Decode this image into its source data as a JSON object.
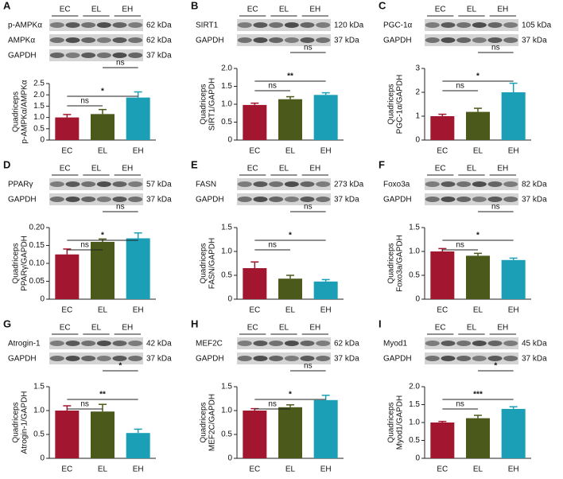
{
  "chart_data": [
    {
      "type": "bar",
      "panel": "A",
      "categories": [
        "EC",
        "EL",
        "EH"
      ],
      "values": [
        1.0,
        1.15,
        1.88
      ],
      "errors": [
        0.13,
        0.2,
        0.25
      ],
      "colors": [
        "#a3162f",
        "#4b5a1b",
        "#1b9fb6"
      ],
      "ylabel": [
        "Quadriceps",
        "p-AMPKα/AMPKα"
      ],
      "ylim": [
        0,
        2.5
      ],
      "yticks": [
        0,
        0.5,
        {
          "value": 1,
          "label": "1.0"
        },
        1.5,
        {
          "value": 2,
          "label": "2.0"
        },
        2.5
      ],
      "blot": {
        "lanes": [
          "EC",
          "EL",
          "EH"
        ],
        "rows": [
          {
            "name": "p-AMPKα",
            "kda": "62 kDa"
          },
          {
            "name": "AMPKα",
            "kda": "62 kDa"
          },
          {
            "name": "GAPDH",
            "kda": "37 kDa"
          }
        ]
      },
      "significance": [
        {
          "between": [
            0,
            1
          ],
          "label": "ns"
        },
        {
          "between": [
            0,
            2
          ],
          "label": "*"
        },
        {
          "between": [
            1,
            2
          ],
          "label": "ns"
        }
      ]
    },
    {
      "type": "bar",
      "panel": "B",
      "categories": [
        "EC",
        "EL",
        "EH"
      ],
      "values": [
        0.98,
        1.14,
        1.26
      ],
      "errors": [
        0.05,
        0.07,
        0.06
      ],
      "colors": [
        "#a3162f",
        "#4b5a1b",
        "#1b9fb6"
      ],
      "ylabel": [
        "Quadriceps",
        "SIRT1/GAPDH"
      ],
      "ylim": [
        0,
        2
      ],
      "yticks": [
        0,
        0.5,
        {
          "value": 1,
          "label": "1.0"
        },
        1.5,
        {
          "value": 2,
          "label": "2.0"
        }
      ],
      "blot": {
        "lanes": [
          "EC",
          "EL",
          "EH"
        ],
        "rows": [
          {
            "name": "SIRT1",
            "kda": "120 kDa"
          },
          {
            "name": "GAPDH",
            "kda": "37 kDa"
          }
        ]
      },
      "significance": [
        {
          "between": [
            0,
            1
          ],
          "label": "ns"
        },
        {
          "between": [
            0,
            2
          ],
          "label": "**"
        },
        {
          "between": [
            1,
            2
          ],
          "label": "ns"
        }
      ]
    },
    {
      "type": "bar",
      "panel": "C",
      "categories": [
        "EC",
        "EL",
        "EH"
      ],
      "values": [
        1.0,
        1.18,
        2.0
      ],
      "errors": [
        0.08,
        0.15,
        0.38
      ],
      "colors": [
        "#a3162f",
        "#4b5a1b",
        "#1b9fb6"
      ],
      "ylabel": [
        "Quadriceps",
        "PGC-1α/GAPDH"
      ],
      "ylim": [
        0,
        3
      ],
      "yticks": [
        0,
        1,
        2,
        3
      ],
      "blot": {
        "lanes": [
          "EC",
          "EL",
          "EH"
        ],
        "rows": [
          {
            "name": "PGC-1α",
            "kda": "105 kDa"
          },
          {
            "name": "GAPDH",
            "kda": "37 kDa"
          }
        ]
      },
      "significance": [
        {
          "between": [
            0,
            1
          ],
          "label": "ns"
        },
        {
          "between": [
            0,
            2
          ],
          "label": "*"
        },
        {
          "between": [
            1,
            2
          ],
          "label": "ns"
        }
      ]
    },
    {
      "type": "bar",
      "panel": "D",
      "categories": [
        "EC",
        "EL",
        "EH"
      ],
      "values": [
        0.125,
        0.16,
        0.17
      ],
      "errors": [
        0.015,
        0.008,
        0.015
      ],
      "colors": [
        "#a3162f",
        "#4b5a1b",
        "#1b9fb6"
      ],
      "ylabel": [
        "Quadriceps",
        "PPARγ/GAPDH"
      ],
      "ylim": [
        0,
        0.2
      ],
      "yticks": [
        0,
        0.05,
        {
          "value": 0.1,
          "label": "0.10"
        },
        0.15,
        {
          "value": 0.2,
          "label": "0.20"
        }
      ],
      "blot": {
        "lanes": [
          "EC",
          "EL",
          "EH"
        ],
        "rows": [
          {
            "name": "PPARγ",
            "kda": "57 kDa"
          },
          {
            "name": "GAPDH",
            "kda": "37 kDa"
          }
        ]
      },
      "significance": [
        {
          "between": [
            0,
            1
          ],
          "label": "ns"
        },
        {
          "between": [
            0,
            2
          ],
          "label": "*"
        },
        {
          "between": [
            1,
            2
          ],
          "label": "ns"
        }
      ]
    },
    {
      "type": "bar",
      "panel": "E",
      "categories": [
        "EC",
        "EL",
        "EH"
      ],
      "values": [
        0.65,
        0.43,
        0.37
      ],
      "errors": [
        0.13,
        0.07,
        0.04
      ],
      "colors": [
        "#a3162f",
        "#4b5a1b",
        "#1b9fb6"
      ],
      "ylabel": [
        "Quadriceps",
        "FASN/GAPDH"
      ],
      "ylim": [
        0,
        1.5
      ],
      "yticks": [
        0,
        0.5,
        {
          "value": 1,
          "label": "1.0"
        },
        1.5
      ],
      "blot": {
        "lanes": [
          "EC",
          "EL",
          "EH"
        ],
        "rows": [
          {
            "name": "FASN",
            "kda": "273 kDa"
          },
          {
            "name": "GAPDH",
            "kda": "37 kDa"
          }
        ]
      },
      "significance": [
        {
          "between": [
            0,
            1
          ],
          "label": "ns"
        },
        {
          "between": [
            0,
            2
          ],
          "label": "*"
        },
        {
          "between": [
            1,
            2
          ],
          "label": "ns"
        }
      ]
    },
    {
      "type": "bar",
      "panel": "F",
      "categories": [
        "EC",
        "EL",
        "EH"
      ],
      "values": [
        1.0,
        0.91,
        0.82
      ],
      "errors": [
        0.06,
        0.05,
        0.04
      ],
      "colors": [
        "#a3162f",
        "#4b5a1b",
        "#1b9fb6"
      ],
      "ylabel": [
        "Quadriceps",
        "Foxo3a/GAPDH"
      ],
      "ylim": [
        0,
        1.5
      ],
      "yticks": [
        0,
        0.5,
        {
          "value": 1,
          "label": "1.0"
        },
        1.5
      ],
      "blot": {
        "lanes": [
          "EC",
          "EL",
          "EH"
        ],
        "rows": [
          {
            "name": "Foxo3a",
            "kda": "82 kDa"
          },
          {
            "name": "GAPDH",
            "kda": "37 kDa"
          }
        ]
      },
      "significance": [
        {
          "between": [
            0,
            1
          ],
          "label": "ns"
        },
        {
          "between": [
            0,
            2
          ],
          "label": "*"
        },
        {
          "between": [
            1,
            2
          ],
          "label": "ns"
        }
      ]
    },
    {
      "type": "bar",
      "panel": "G",
      "categories": [
        "EC",
        "EL",
        "EH"
      ],
      "values": [
        1.0,
        0.98,
        0.53
      ],
      "errors": [
        0.1,
        0.15,
        0.08
      ],
      "colors": [
        "#a3162f",
        "#4b5a1b",
        "#1b9fb6"
      ],
      "ylabel": [
        "Quadriceps",
        "Atrogin-1/GAPDH"
      ],
      "ylim": [
        0,
        1.5
      ],
      "yticks": [
        0,
        0.5,
        {
          "value": 1,
          "label": "1.0"
        },
        1.5
      ],
      "blot": {
        "lanes": [
          "EC",
          "EL",
          "EH"
        ],
        "rows": [
          {
            "name": "Atrogin-1",
            "kda": "42 kDa"
          },
          {
            "name": "GAPDH",
            "kda": "37 kDa"
          }
        ]
      },
      "significance": [
        {
          "between": [
            0,
            1
          ],
          "label": "ns"
        },
        {
          "between": [
            0,
            2
          ],
          "label": "**"
        },
        {
          "between": [
            1,
            2
          ],
          "label": "*"
        }
      ]
    },
    {
      "type": "bar",
      "panel": "H",
      "categories": [
        "EC",
        "EL",
        "EH"
      ],
      "values": [
        1.0,
        1.07,
        1.22
      ],
      "errors": [
        0.04,
        0.05,
        0.1
      ],
      "colors": [
        "#a3162f",
        "#4b5a1b",
        "#1b9fb6"
      ],
      "ylabel": [
        "Quadriceps",
        "MEF2C/GAPDH"
      ],
      "ylim": [
        0,
        1.5
      ],
      "yticks": [
        0,
        0.5,
        {
          "value": 1,
          "label": "1.0"
        },
        1.5
      ],
      "blot": {
        "lanes": [
          "EC",
          "EL",
          "EH"
        ],
        "rows": [
          {
            "name": "MEF2C",
            "kda": "62 kDa"
          },
          {
            "name": "GAPDH",
            "kda": "37 kDa"
          }
        ]
      },
      "significance": [
        {
          "between": [
            0,
            1
          ],
          "label": "ns"
        },
        {
          "between": [
            0,
            2
          ],
          "label": "*"
        },
        {
          "between": [
            1,
            2
          ],
          "label": "ns"
        }
      ]
    },
    {
      "type": "bar",
      "panel": "I",
      "categories": [
        "EC",
        "EL",
        "EH"
      ],
      "values": [
        1.0,
        1.12,
        1.38
      ],
      "errors": [
        0.03,
        0.08,
        0.06
      ],
      "colors": [
        "#a3162f",
        "#4b5a1b",
        "#1b9fb6"
      ],
      "ylabel": [
        "Quadriceps",
        "Myod1/GAPDH"
      ],
      "ylim": [
        0,
        2
      ],
      "yticks": [
        0,
        0.5,
        {
          "value": 1,
          "label": "1.0"
        },
        1.5,
        {
          "value": 2,
          "label": "2.0"
        }
      ],
      "blot": {
        "lanes": [
          "EC",
          "EL",
          "EH"
        ],
        "rows": [
          {
            "name": "Myod1",
            "kda": "45 kDa"
          },
          {
            "name": "GAPDH",
            "kda": "37 kDa"
          }
        ]
      },
      "significance": [
        {
          "between": [
            0,
            1
          ],
          "label": "ns"
        },
        {
          "between": [
            0,
            2
          ],
          "label": "***"
        },
        {
          "between": [
            1,
            2
          ],
          "label": "*"
        }
      ]
    }
  ]
}
